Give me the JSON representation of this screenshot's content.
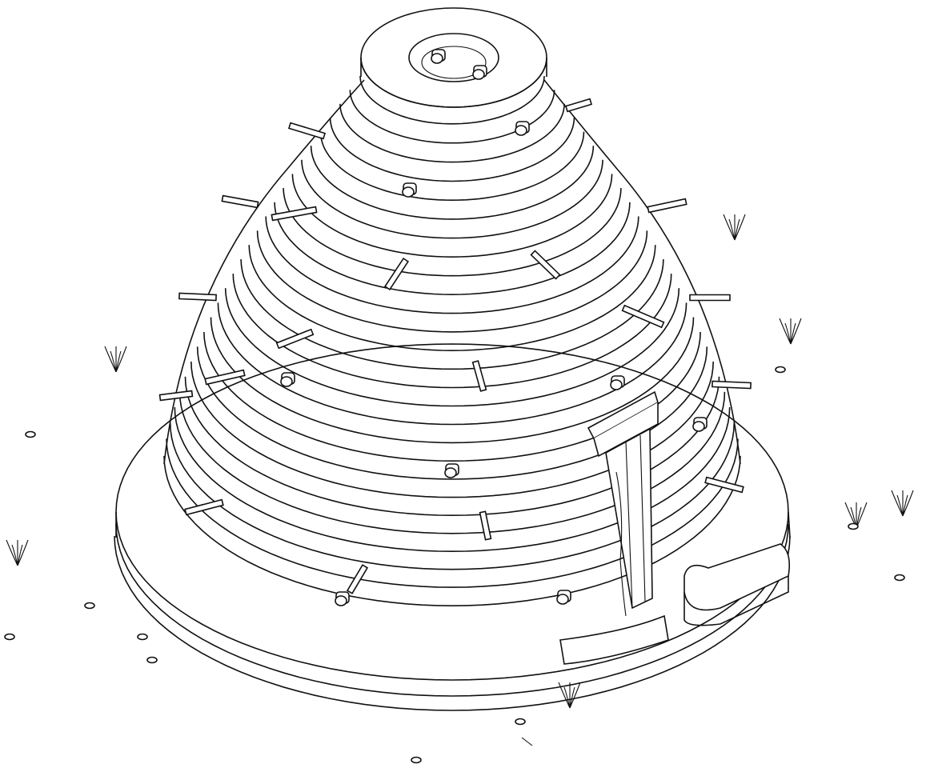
{
  "illustration": {
    "subject": "superadobe-earthbag-dome",
    "colors": {
      "ink": "#111111",
      "paper": "#ffffff"
    },
    "dome": {
      "course_count": 27,
      "roof_vent": "open-ring"
    },
    "door": {
      "type": "rectangular-frame-with-lintel"
    },
    "buttresses": 2,
    "ground_tufts": 7,
    "pebbles": 10
  }
}
